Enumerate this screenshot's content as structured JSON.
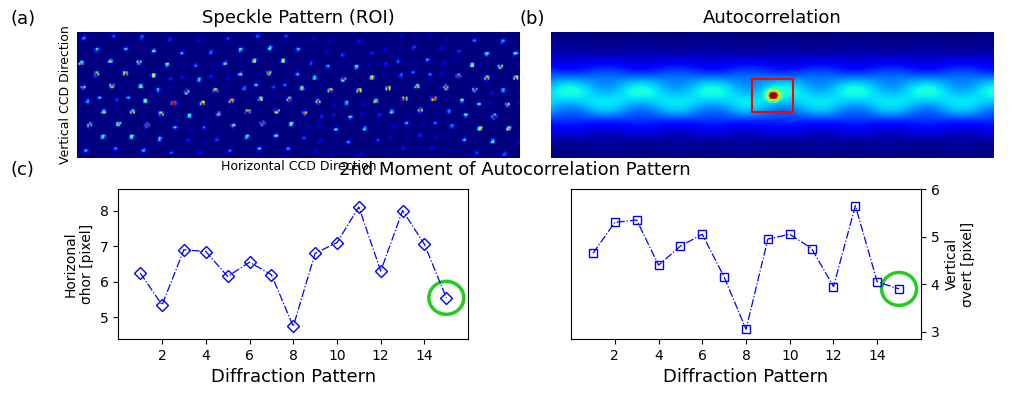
{
  "chart_data": [
    {
      "type": "image",
      "panel": "(a)",
      "title": "Speckle Pattern (ROI)",
      "xlabel": "Horizontal CCD Direction",
      "ylabel": "Vertical CCD Direction",
      "tick_labels": false
    },
    {
      "type": "image",
      "panel": "(b)",
      "title": "Autocorrelation",
      "tick_labels": false
    },
    {
      "type": "line",
      "xlabel": "Diffraction Pattern",
      "ylabel": "Horizonal\nσhor [pixel]",
      "x": [
        1,
        2,
        3,
        4,
        5,
        6,
        7,
        8,
        9,
        10,
        11,
        12,
        13,
        14,
        15
      ],
      "values": [
        6.25,
        5.35,
        6.9,
        6.85,
        6.15,
        6.55,
        6.2,
        4.75,
        6.8,
        7.1,
        8.1,
        6.3,
        8.0,
        7.05,
        5.55
      ],
      "color": "#0000ff",
      "marker": "diamond",
      "line_style": "dashdot",
      "xlim": [
        0,
        16
      ],
      "xticks": [
        2,
        4,
        6,
        8,
        10,
        12,
        14
      ],
      "ylim": [
        4.4,
        8.6
      ],
      "yticks": [
        5,
        6,
        7,
        8
      ]
    },
    {
      "type": "line",
      "xlabel": "Diffraction Pattern",
      "ylabel": "Vertical\nσvert [pixel]",
      "x": [
        1,
        2,
        3,
        4,
        5,
        6,
        7,
        8,
        9,
        10,
        11,
        12,
        13,
        14,
        15
      ],
      "values": [
        4.65,
        5.3,
        5.35,
        4.4,
        4.8,
        5.05,
        4.15,
        3.05,
        4.95,
        5.05,
        4.75,
        3.95,
        5.65,
        4.05,
        3.9
      ],
      "color": "#0000ff",
      "marker": "square",
      "line_style": "dashdot",
      "xlim": [
        0,
        16
      ],
      "xticks": [
        2,
        4,
        6,
        8,
        10,
        12,
        14
      ],
      "ylim": [
        2.85,
        6.0
      ],
      "yticks": [
        3,
        4,
        5,
        6
      ]
    }
  ],
  "group": {
    "panel": "(c)",
    "title": "2nd Moment of Autocorrelation Pattern"
  }
}
